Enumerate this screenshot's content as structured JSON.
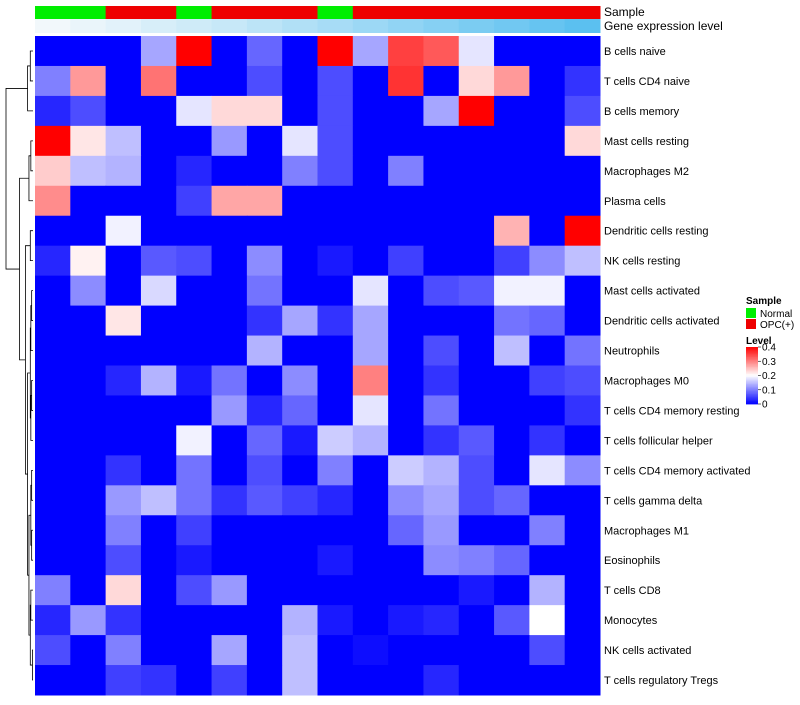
{
  "chart_data": {
    "type": "heatmap",
    "title": "",
    "annotation_labels": [
      "Sample",
      "Gene expression level"
    ],
    "sample_annotation": [
      "Normal",
      "Normal",
      "OPC(+)",
      "OPC(+)",
      "Normal",
      "OPC(+)",
      "OPC(+)",
      "OPC(+)",
      "Normal",
      "OPC(+)",
      "OPC(+)",
      "OPC(+)",
      "OPC(+)",
      "OPC(+)",
      "OPC(+)",
      "OPC(+)"
    ],
    "gene_expression_level": [
      0.02,
      0.05,
      0.08,
      0.12,
      0.15,
      0.18,
      0.22,
      0.26,
      0.3,
      0.34,
      0.38,
      0.42,
      0.46,
      0.5,
      0.54,
      0.58
    ],
    "row_labels": [
      "B cells naive",
      "T cells CD4 naive",
      "B cells memory",
      "Mast cells resting",
      "Macrophages M2",
      "Plasma cells",
      "Dendritic cells resting",
      "NK cells resting",
      "Mast cells activated",
      "Dendritic cells activated",
      "Neutrophils",
      "Macrophages M0",
      "T cells CD4 memory resting",
      "T cells follicular helper",
      "T cells CD4 memory activated",
      "T cells gamma delta",
      "Macrophages M1",
      "Eosinophils",
      "T cells CD8",
      "Monocytes",
      "NK cells activated",
      "T cells regulatory  Tregs"
    ],
    "values": [
      [
        0,
        0,
        0,
        0.13,
        0.4,
        0,
        0.08,
        0,
        0.4,
        0.13,
        0.35,
        0.33,
        0.18,
        0,
        0,
        0
      ],
      [
        0.1,
        0.28,
        0,
        0.31,
        0,
        0,
        0.06,
        0,
        0.06,
        0,
        0.36,
        0,
        0.23,
        0.28,
        0,
        0.04
      ],
      [
        0.03,
        0.06,
        0,
        0,
        0.18,
        0.23,
        0.23,
        0,
        0.06,
        0,
        0,
        0.13,
        0.4,
        0,
        0,
        0.06
      ],
      [
        0.4,
        0.22,
        0.15,
        0,
        0,
        0.12,
        0,
        0.18,
        0.06,
        0,
        0,
        0,
        0,
        0,
        0,
        0.23
      ],
      [
        0.24,
        0.15,
        0.14,
        0,
        0.03,
        0,
        0,
        0.1,
        0.06,
        0,
        0.1,
        0,
        0,
        0,
        0,
        0
      ],
      [
        0.29,
        0,
        0,
        0,
        0.05,
        0.27,
        0.27,
        0,
        0,
        0,
        0,
        0,
        0,
        0,
        0,
        0
      ],
      [
        0,
        0,
        0.19,
        0,
        0,
        0,
        0,
        0,
        0,
        0,
        0,
        0,
        0,
        0.26,
        0,
        0.4
      ],
      [
        0.03,
        0.21,
        0,
        0.07,
        0.06,
        0,
        0.11,
        0,
        0.02,
        0,
        0.05,
        0,
        0,
        0.05,
        0.11,
        0.15
      ],
      [
        0,
        0.11,
        0,
        0.17,
        0,
        0,
        0.09,
        0,
        0,
        0.18,
        0,
        0.06,
        0.07,
        0.19,
        0.19,
        0
      ],
      [
        0,
        0,
        0.22,
        0,
        0,
        0,
        0.04,
        0.13,
        0.04,
        0.13,
        0,
        0,
        0,
        0.09,
        0.08,
        0
      ],
      [
        0,
        0,
        0,
        0,
        0,
        0,
        0.14,
        0,
        0,
        0.13,
        0,
        0.06,
        0,
        0.15,
        0,
        0.09
      ],
      [
        0,
        0,
        0.03,
        0.14,
        0.02,
        0.09,
        0,
        0.11,
        0,
        0.3,
        0,
        0.04,
        0,
        0,
        0.05,
        0.06
      ],
      [
        0,
        0,
        0,
        0,
        0,
        0.12,
        0.03,
        0.08,
        0,
        0.18,
        0,
        0.09,
        0,
        0,
        0,
        0.04
      ],
      [
        0,
        0,
        0,
        0,
        0.19,
        0,
        0.08,
        0.02,
        0.16,
        0.14,
        0,
        0.04,
        0.07,
        0,
        0.04,
        0
      ],
      [
        0,
        0,
        0.04,
        0,
        0.09,
        0,
        0.06,
        0,
        0.1,
        0,
        0.16,
        0.14,
        0.06,
        0,
        0.18,
        0.11
      ],
      [
        0,
        0,
        0.12,
        0.15,
        0.09,
        0.04,
        0.07,
        0.05,
        0.03,
        0,
        0.11,
        0.13,
        0.06,
        0.08,
        0,
        0
      ],
      [
        0,
        0,
        0.1,
        0,
        0.05,
        0,
        0,
        0,
        0,
        0,
        0.08,
        0.12,
        0,
        0,
        0.1,
        0
      ],
      [
        0,
        0,
        0.06,
        0,
        0.02,
        0,
        0,
        0,
        0.02,
        0,
        0,
        0.11,
        0.1,
        0.08,
        0,
        0
      ],
      [
        0.1,
        0,
        0.23,
        0,
        0.06,
        0.12,
        0,
        0,
        0,
        0,
        0,
        0,
        0.02,
        0,
        0.14,
        0
      ],
      [
        0.03,
        0.12,
        0.04,
        0,
        0,
        0,
        0,
        0.14,
        0.02,
        0,
        0.02,
        0.03,
        0,
        0.07,
        0.2,
        0
      ],
      [
        0.06,
        0,
        0.1,
        0,
        0,
        0.13,
        0,
        0.15,
        0,
        0.01,
        0,
        0,
        0,
        0,
        0.06,
        0
      ],
      [
        0,
        0,
        0.05,
        0.04,
        0,
        0.05,
        0,
        0.15,
        0,
        0,
        0,
        0.03,
        0,
        0,
        0,
        0
      ]
    ],
    "color_scale": {
      "min": 0,
      "max": 0.4,
      "low": "#0000ff",
      "mid": "#ffffff",
      "mid_value": 0.2,
      "high": "#ff0000"
    },
    "annotation_colors": {
      "Normal": "#00ee00",
      "OPC(+)": "#ee0000",
      "level_low": "#f2f8fb",
      "level_high": "#5bc0f0"
    },
    "legend": {
      "sample_title": "Sample",
      "sample_items": [
        "Normal",
        "OPC(+)"
      ],
      "level_title": "Level",
      "level_ticks": [
        "0.4",
        "0.3",
        "0.2",
        "0.1",
        "0"
      ],
      "placement": "right"
    }
  }
}
